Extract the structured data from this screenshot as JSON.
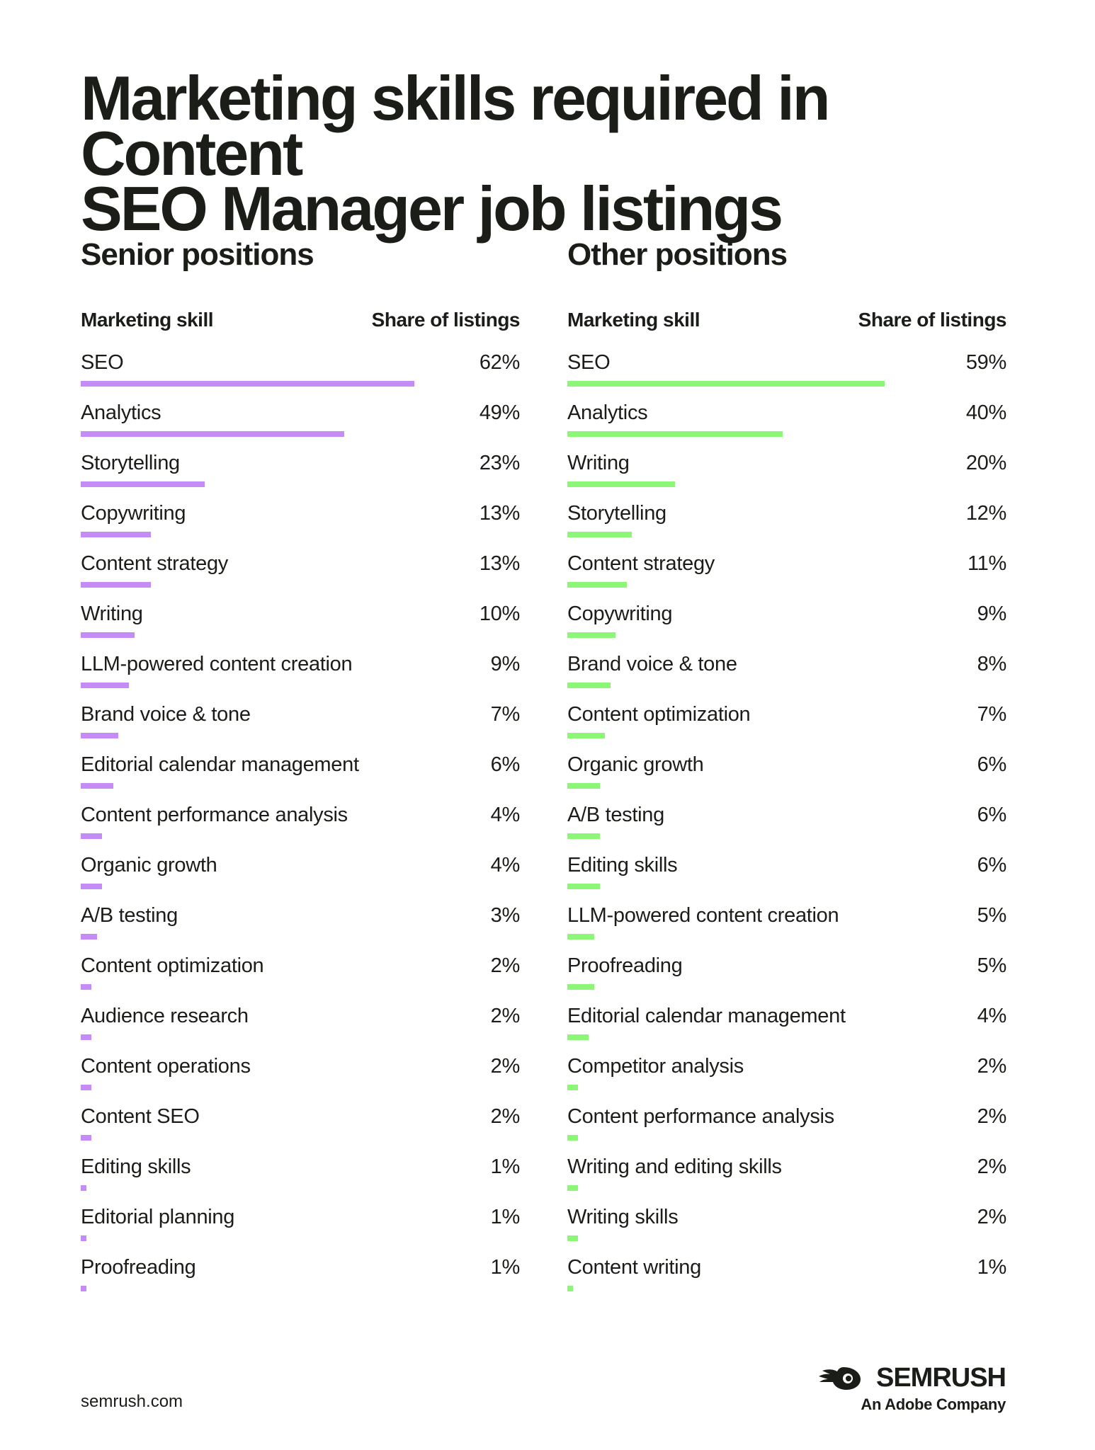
{
  "title_lines": [
    "Marketing skills required in Content",
    "SEO Manager job listings"
  ],
  "column_headers": {
    "skill": "Marketing skill",
    "share": "Share of listings"
  },
  "colors": {
    "senior": "#c58cf8",
    "other": "#8cf777",
    "text": "#1b1d18"
  },
  "footer": {
    "url": "semrush.com"
  },
  "brand": {
    "name": "SEMRUSH",
    "tagline": "An Adobe Company",
    "icon": "semrush-fireball-icon"
  },
  "chart_data": [
    {
      "type": "bar",
      "orientation": "horizontal",
      "title": "Senior positions",
      "xlabel": "Share of listings",
      "ylabel": "Marketing skill",
      "unit": "%",
      "color": "#c58cf8",
      "categories": [
        "SEO",
        "Analytics",
        "Storytelling",
        "Copywriting",
        "Content strategy",
        "Writing",
        "LLM-powered content creation",
        "Brand voice & tone",
        "Editorial calendar management",
        "Content performance analysis",
        "Organic growth",
        "A/B testing",
        "Content optimization",
        "Audience research",
        "Content operations",
        "Content SEO",
        "Editing skills",
        "Editorial planning",
        "Proofreading"
      ],
      "values": [
        62,
        49,
        23,
        13,
        13,
        10,
        9,
        7,
        6,
        4,
        4,
        3,
        2,
        2,
        2,
        2,
        1,
        1,
        1
      ]
    },
    {
      "type": "bar",
      "orientation": "horizontal",
      "title": "Other positions",
      "xlabel": "Share of listings",
      "ylabel": "Marketing skill",
      "unit": "%",
      "color": "#8cf777",
      "categories": [
        "SEO",
        "Analytics",
        "Writing",
        "Storytelling",
        "Content strategy",
        "Copywriting",
        "Brand voice & tone",
        "Content optimization",
        "Organic growth",
        "A/B testing",
        "Editing skills",
        "LLM-powered content creation",
        "Proofreading",
        "Editorial calendar management",
        "Competitor analysis",
        "Content performance analysis",
        "Writing and editing skills",
        "Writing skills",
        "Content writing"
      ],
      "values": [
        59,
        40,
        20,
        12,
        11,
        9,
        8,
        7,
        6,
        6,
        6,
        5,
        5,
        4,
        2,
        2,
        2,
        2,
        1
      ]
    }
  ]
}
